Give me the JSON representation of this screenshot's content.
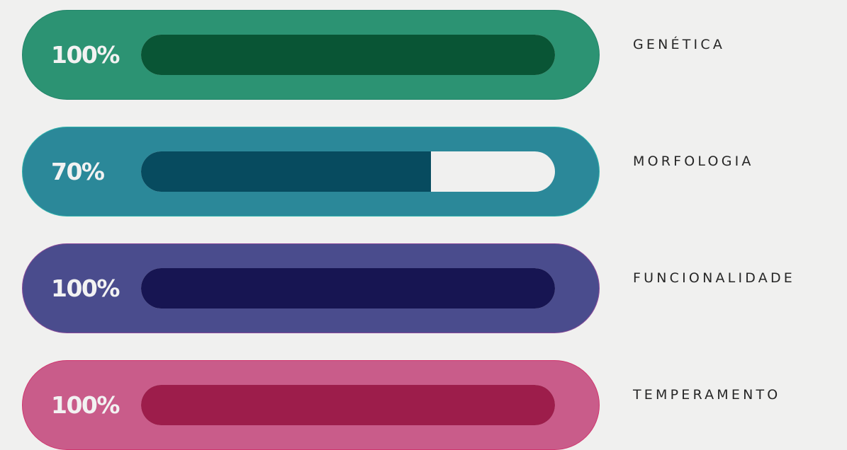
{
  "bars": [
    {
      "percent_text": "100%",
      "level": 100,
      "label": "GENÉTICA",
      "pill_color": "#2c9373",
      "pill_border": "#23856a",
      "fill_color": "#095535"
    },
    {
      "percent_text": "70%",
      "level": 70,
      "label": "MORFOLOGIA",
      "pill_color": "#2b8899",
      "pill_border": "#2fb3ac",
      "fill_color": "#074b5f"
    },
    {
      "percent_text": "100%",
      "level": 100,
      "label": "FUNCIONALIDADE",
      "pill_color": "#4a4c8d",
      "pill_border": "#8a4a9a",
      "fill_color": "#171552"
    },
    {
      "percent_text": "100%",
      "level": 100,
      "label": "TEMPERAMENTO",
      "pill_color": "#c95c8a",
      "pill_border": "#d0366e",
      "fill_color": "#9d1d4b"
    }
  ]
}
